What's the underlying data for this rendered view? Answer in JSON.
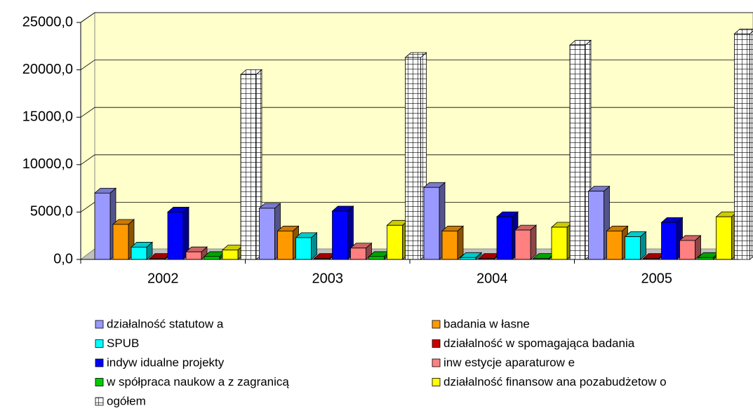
{
  "chart_data": {
    "type": "bar3d",
    "categories": [
      "2002",
      "2003",
      "2004",
      "2005"
    ],
    "series": [
      {
        "name": "działalność statutow a",
        "color": "#9999ff",
        "values": [
          7000,
          5400,
          7600,
          7200
        ]
      },
      {
        "name": "badania w łasne",
        "color": "#ff9900",
        "values": [
          3700,
          3000,
          3000,
          3000
        ]
      },
      {
        "name": "SPUB",
        "color": "#00ffff",
        "values": [
          1300,
          2300,
          200,
          2400
        ]
      },
      {
        "name": "działalność w spomagająca badania",
        "color": "#cc0000",
        "values": [
          100,
          100,
          100,
          100
        ]
      },
      {
        "name": "indyw idualne projekty",
        "color": "#0000ff",
        "values": [
          5000,
          5100,
          4500,
          3900
        ]
      },
      {
        "name": "inw estycje aparaturow e",
        "color": "#ff8080",
        "values": [
          800,
          1200,
          3100,
          2000
        ]
      },
      {
        "name": "w spółpraca naukow a z zagranicą",
        "color": "#00cc00",
        "values": [
          300,
          300,
          100,
          200
        ]
      },
      {
        "name": "działalność finansow ana pozabudżetow o",
        "color": "#ffff00",
        "values": [
          1000,
          3600,
          3400,
          4500
        ]
      },
      {
        "name": "ogółem",
        "color": "#ffffff",
        "values": [
          19500,
          21300,
          22600,
          23800
        ]
      }
    ],
    "ylim": [
      0,
      25000
    ],
    "yticks": [
      {
        "value": 0,
        "label": "0,0"
      },
      {
        "value": 5000,
        "label": "5000,0"
      },
      {
        "value": 10000,
        "label": "10000,0"
      },
      {
        "value": 15000,
        "label": "15000,0"
      },
      {
        "value": 20000,
        "label": "20000,0"
      },
      {
        "value": 25000,
        "label": "25000,0"
      }
    ],
    "grid": true,
    "legend": "bottom"
  }
}
